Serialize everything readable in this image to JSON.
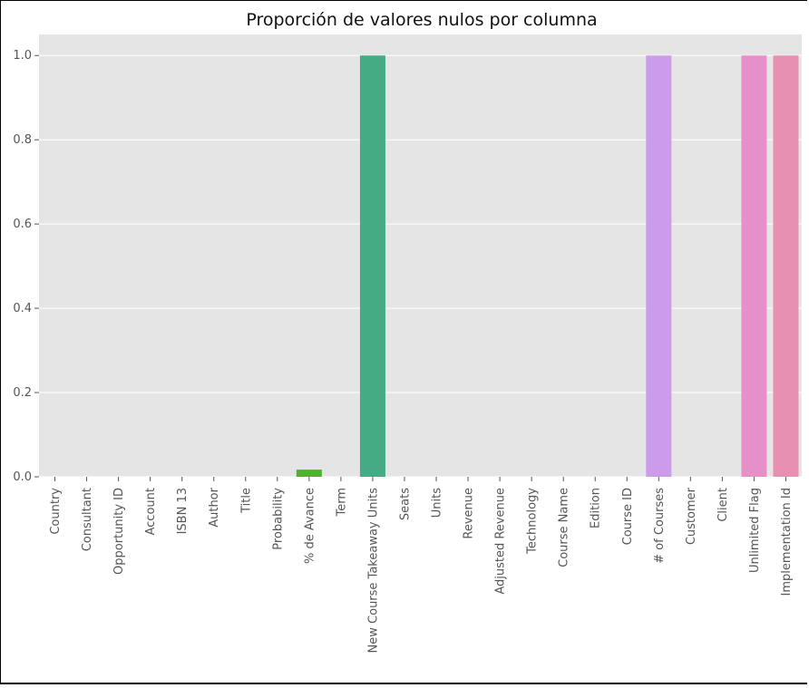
{
  "chart_data": {
    "type": "bar",
    "title": "Proporción de valores nulos por columna",
    "xlabel": "",
    "ylabel": "",
    "ylim": [
      0,
      1.05
    ],
    "yticks": [
      "0.0",
      "0.2",
      "0.4",
      "0.6",
      "0.8",
      "1.0"
    ],
    "grid": true,
    "categories": [
      "Country",
      "Consultant",
      "Opportunity ID",
      "Account",
      "ISBN 13",
      "Author",
      "Title",
      "Probability",
      "% de Avance",
      "Term",
      "New Course Takeaway Units",
      "Seats",
      "Units",
      "Revenue",
      "Adjusted Revenue",
      "Technology",
      "Course Name",
      "Edition",
      "Course ID",
      "# of Courses",
      "Customer",
      "Client",
      "Unlimited Flag",
      "Implementation Id"
    ],
    "values": [
      0,
      0,
      0,
      0,
      0,
      0,
      0,
      0,
      0.017,
      0,
      1.0,
      0,
      0,
      0,
      0,
      0,
      0,
      0,
      0,
      1.0,
      0,
      0,
      1.0,
      1.0
    ],
    "colors": [
      "#f77189",
      "#f7754f",
      "#dc8932",
      "#c39532",
      "#ae9d31",
      "#97a431",
      "#77ab31",
      "#33b07a",
      "#50b131",
      "#34ae91",
      "#44ab84",
      "#36ada4",
      "#37abb4",
      "#38a9c5",
      "#3aa5df",
      "#6e9bf4",
      "#a48cf4",
      "#cc7af4",
      "#d576e5",
      "#cc9cea",
      "#f45cb8",
      "#f565cc",
      "#e68fc8",
      "#e691b1"
    ],
    "background": "#e5e5e5",
    "gridcolor": "#ffffff"
  }
}
